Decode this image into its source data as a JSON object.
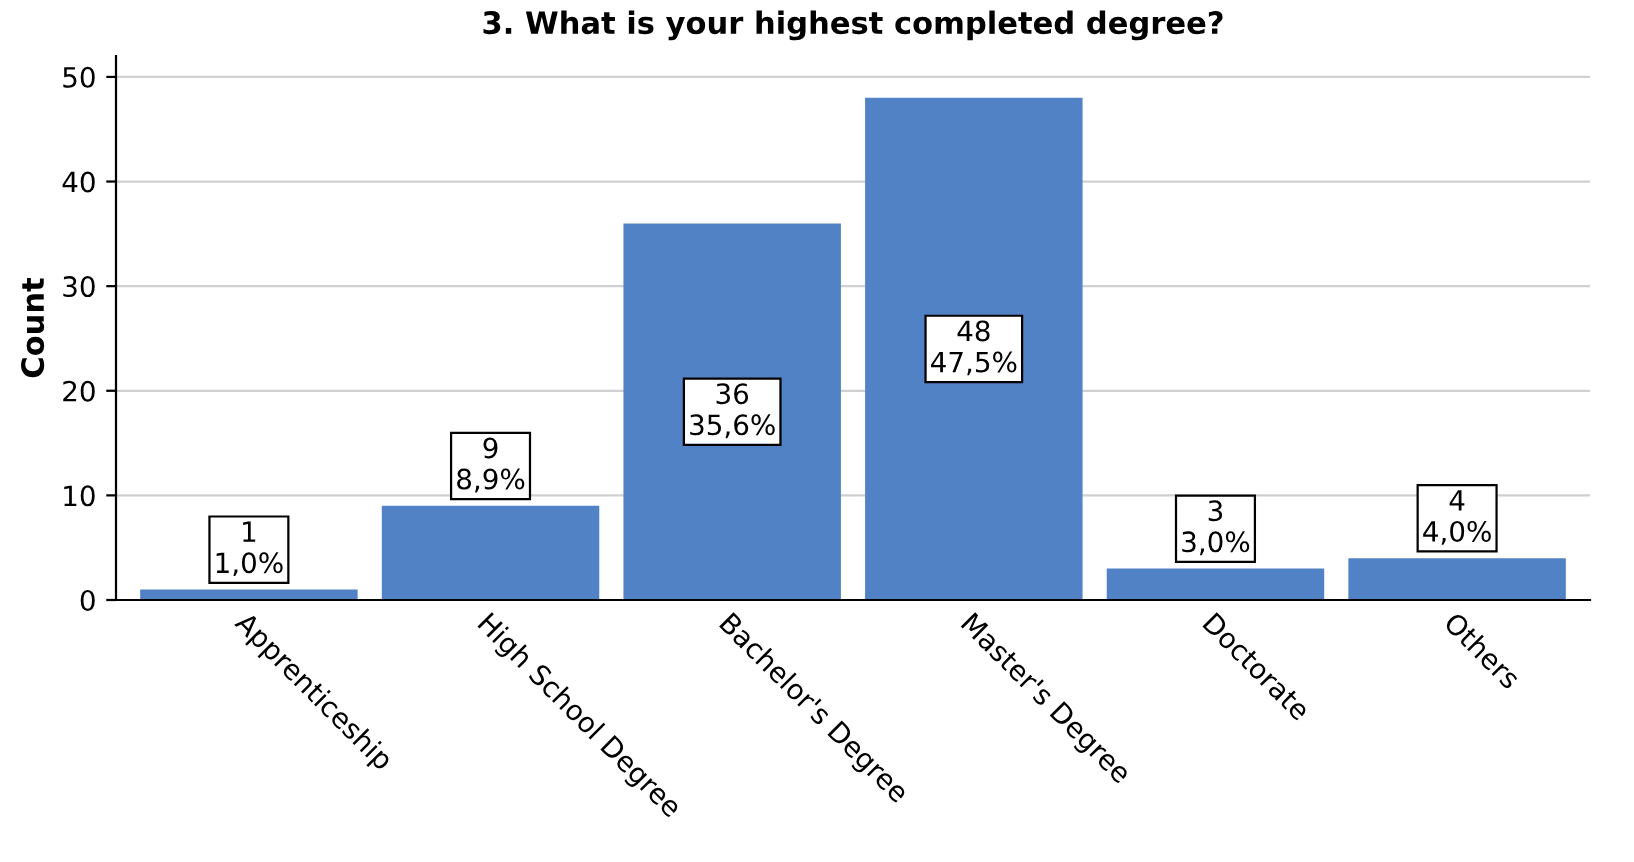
{
  "chart_data": {
    "type": "bar",
    "title": "3. What is your highest completed degree?",
    "ylabel": "Count",
    "categories": [
      "Apprenticeship",
      "High School Degree",
      "Bachelor's Degree",
      "Master's Degree",
      "Doctorate",
      "Others"
    ],
    "values": [
      1,
      9,
      36,
      48,
      3,
      4
    ],
    "value_labels": [
      "1\n1,0%",
      "9\n8,9%",
      "36\n35,6%",
      "48\n47,5%",
      "3\n3,0%",
      "4\n4,0%"
    ],
    "color": "#5282c6",
    "ylim": [
      0,
      52
    ],
    "yticks": [
      0,
      10,
      20,
      30,
      40,
      50
    ],
    "grid": "y",
    "legend": false
  }
}
